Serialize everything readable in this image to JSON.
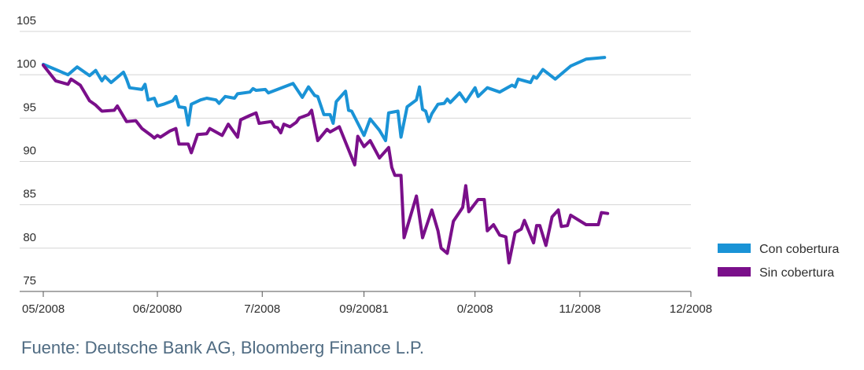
{
  "chart_data": {
    "type": "line",
    "title": "",
    "xlabel": "",
    "ylabel": "",
    "ylim": [
      75,
      105
    ],
    "yticks": [
      75,
      80,
      85,
      90,
      95,
      100,
      105
    ],
    "xlim": [
      0,
      210
    ],
    "x_tick_labels": [
      {
        "x": 0,
        "label": "05/2008"
      },
      {
        "x": 37,
        "label": "06/20080"
      },
      {
        "x": 71,
        "label": "7/2008"
      },
      {
        "x": 104,
        "label": "09/20081"
      },
      {
        "x": 140,
        "label": "0/2008"
      },
      {
        "x": 174,
        "label": "11/2008"
      },
      {
        "x": 210,
        "label": "12/2008"
      }
    ],
    "grid": true,
    "legend_position": "right",
    "series": [
      {
        "name": "Con cobertura",
        "color": "#1a93d6",
        "points": [
          [
            0,
            101.2
          ],
          [
            4,
            100.6
          ],
          [
            8,
            100
          ],
          [
            11,
            100.9
          ],
          [
            15,
            99.9
          ],
          [
            17,
            100.5
          ],
          [
            19,
            99.3
          ],
          [
            20,
            99.8
          ],
          [
            22,
            99.1
          ],
          [
            26,
            100.3
          ],
          [
            27,
            99.5
          ],
          [
            28,
            98.5
          ],
          [
            30,
            98.4
          ],
          [
            32,
            98.3
          ],
          [
            33,
            98.9
          ],
          [
            34,
            97.1
          ],
          [
            36,
            97.3
          ],
          [
            37,
            96.4
          ],
          [
            39,
            96.6
          ],
          [
            42,
            97
          ],
          [
            43,
            97.5
          ],
          [
            44,
            96.3
          ],
          [
            46,
            96.2
          ],
          [
            47,
            94.2
          ],
          [
            48,
            96.6
          ],
          [
            51,
            97.1
          ],
          [
            53,
            97.3
          ],
          [
            56,
            97.1
          ],
          [
            57,
            96.7
          ],
          [
            59,
            97.5
          ],
          [
            62,
            97.3
          ],
          [
            63,
            97.8
          ],
          [
            67,
            98
          ],
          [
            68,
            98.4
          ],
          [
            69,
            98.2
          ],
          [
            72,
            98.3
          ],
          [
            73,
            97.9
          ],
          [
            81,
            99
          ],
          [
            84,
            97.4
          ],
          [
            86,
            98.6
          ],
          [
            88,
            97.6
          ],
          [
            89,
            97.5
          ],
          [
            91,
            95.4
          ],
          [
            93,
            95.4
          ],
          [
            94,
            94.4
          ],
          [
            95,
            96.9
          ],
          [
            98,
            98.1
          ],
          [
            99,
            95.9
          ],
          [
            100,
            95.8
          ],
          [
            104,
            93
          ],
          [
            106,
            94.9
          ],
          [
            109,
            93.6
          ],
          [
            111,
            92.4
          ],
          [
            112,
            95.6
          ],
          [
            115,
            95.8
          ],
          [
            116,
            92.8
          ],
          [
            118,
            96.3
          ],
          [
            121,
            97.1
          ],
          [
            122,
            98.6
          ],
          [
            123,
            96
          ],
          [
            124,
            95.8
          ],
          [
            125,
            94.6
          ],
          [
            126,
            95.5
          ],
          [
            128,
            96.6
          ],
          [
            130,
            96.7
          ],
          [
            131,
            97.2
          ],
          [
            132,
            96.8
          ],
          [
            135,
            97.9
          ],
          [
            137,
            96.9
          ],
          [
            140,
            98.5
          ],
          [
            141,
            97.5
          ],
          [
            144,
            98.5
          ],
          [
            148,
            98
          ],
          [
            152,
            98.8
          ],
          [
            153,
            98.6
          ],
          [
            154,
            99.5
          ],
          [
            158,
            99.1
          ],
          [
            159,
            99.8
          ],
          [
            160,
            99.6
          ],
          [
            162,
            100.6
          ],
          [
            166,
            99.5
          ],
          [
            171,
            101
          ],
          [
            176,
            101.8
          ],
          [
            182,
            102
          ]
        ]
      },
      {
        "name": "Sin cobertura",
        "color": "#7a0f8a",
        "points": [
          [
            0,
            101.1
          ],
          [
            4,
            99.3
          ],
          [
            8,
            98.9
          ],
          [
            9,
            99.5
          ],
          [
            12,
            98.8
          ],
          [
            15,
            97
          ],
          [
            17,
            96.5
          ],
          [
            19,
            95.8
          ],
          [
            23,
            95.9
          ],
          [
            24,
            96.4
          ],
          [
            27,
            94.6
          ],
          [
            30,
            94.7
          ],
          [
            32,
            93.8
          ],
          [
            35,
            93
          ],
          [
            36,
            92.7
          ],
          [
            37,
            93
          ],
          [
            38,
            92.8
          ],
          [
            41,
            93.5
          ],
          [
            43,
            93.8
          ],
          [
            44,
            92
          ],
          [
            47,
            92
          ],
          [
            48,
            91
          ],
          [
            50,
            93.1
          ],
          [
            53,
            93.2
          ],
          [
            54,
            93.8
          ],
          [
            58,
            93
          ],
          [
            60,
            94.3
          ],
          [
            63,
            92.8
          ],
          [
            64,
            94.8
          ],
          [
            67,
            95.3
          ],
          [
            69,
            95.6
          ],
          [
            70,
            94.4
          ],
          [
            74,
            94.6
          ],
          [
            75,
            94
          ],
          [
            76,
            93.9
          ],
          [
            77,
            93.3
          ],
          [
            78,
            94.3
          ],
          [
            80,
            94
          ],
          [
            82,
            94.5
          ],
          [
            83,
            95
          ],
          [
            86,
            95.4
          ],
          [
            87,
            95.9
          ],
          [
            89,
            92.4
          ],
          [
            92,
            93.7
          ],
          [
            93,
            93.4
          ],
          [
            95,
            93.8
          ],
          [
            96,
            94
          ],
          [
            101,
            89.6
          ],
          [
            102,
            92.9
          ],
          [
            104,
            91.7
          ],
          [
            106,
            92.4
          ],
          [
            109,
            90.4
          ],
          [
            112,
            91.6
          ],
          [
            113,
            89.3
          ],
          [
            114,
            88.4
          ],
          [
            116,
            88.4
          ],
          [
            117,
            81.2
          ],
          [
            121,
            86
          ],
          [
            123,
            81.2
          ],
          [
            126,
            84.4
          ],
          [
            128,
            82
          ],
          [
            129,
            80
          ],
          [
            131,
            79.4
          ],
          [
            133,
            83.1
          ],
          [
            136,
            84.7
          ],
          [
            137,
            87.2
          ],
          [
            138,
            84.2
          ],
          [
            141,
            85.6
          ],
          [
            143,
            85.6
          ],
          [
            144,
            82
          ],
          [
            146,
            82.7
          ],
          [
            148,
            81.5
          ],
          [
            150,
            81.3
          ],
          [
            151,
            78.3
          ],
          [
            153,
            81.8
          ],
          [
            155,
            82.2
          ],
          [
            156,
            83.2
          ],
          [
            159,
            80.6
          ],
          [
            160,
            82.6
          ],
          [
            161,
            82.6
          ],
          [
            163,
            80.3
          ],
          [
            165,
            83.6
          ],
          [
            167,
            84.4
          ],
          [
            168,
            82.5
          ],
          [
            170,
            82.6
          ],
          [
            171,
            83.8
          ],
          [
            176,
            82.7
          ],
          [
            180,
            82.7
          ],
          [
            181,
            84.1
          ],
          [
            183,
            84
          ]
        ]
      }
    ]
  },
  "source_text": "Fuente: Deutsche Bank AG, Bloomberg Finance L.P."
}
